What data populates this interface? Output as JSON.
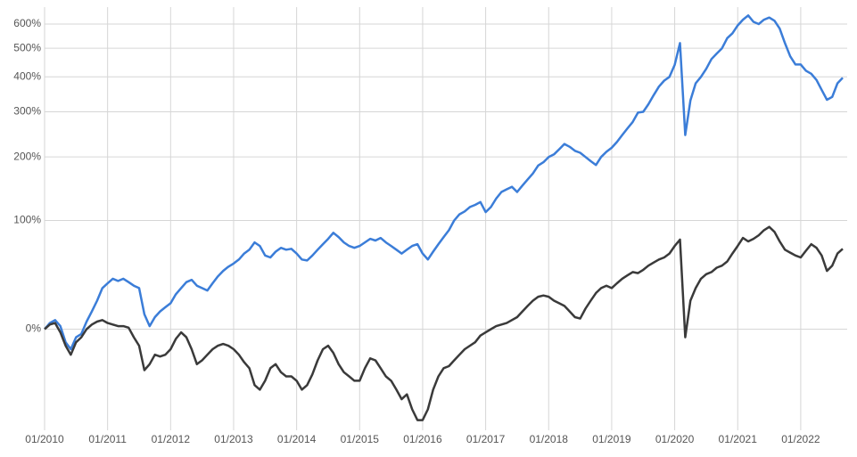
{
  "chart_data": {
    "type": "line",
    "log_scale": true,
    "grid": true,
    "x": [
      "01/2010",
      "02/2010",
      "03/2010",
      "04/2010",
      "05/2010",
      "06/2010",
      "07/2010",
      "08/2010",
      "09/2010",
      "10/2010",
      "11/2010",
      "12/2010",
      "01/2011",
      "02/2011",
      "03/2011",
      "04/2011",
      "05/2011",
      "06/2011",
      "07/2011",
      "08/2011",
      "09/2011",
      "10/2011",
      "11/2011",
      "12/2011",
      "01/2012",
      "02/2012",
      "03/2012",
      "04/2012",
      "05/2012",
      "06/2012",
      "07/2012",
      "08/2012",
      "09/2012",
      "10/2012",
      "11/2012",
      "12/2012",
      "01/2013",
      "02/2013",
      "03/2013",
      "04/2013",
      "05/2013",
      "06/2013",
      "07/2013",
      "08/2013",
      "09/2013",
      "10/2013",
      "11/2013",
      "12/2013",
      "01/2014",
      "02/2014",
      "03/2014",
      "04/2014",
      "05/2014",
      "06/2014",
      "07/2014",
      "08/2014",
      "09/2014",
      "10/2014",
      "11/2014",
      "12/2014",
      "01/2015",
      "02/2015",
      "03/2015",
      "04/2015",
      "05/2015",
      "06/2015",
      "07/2015",
      "08/2015",
      "09/2015",
      "10/2015",
      "11/2015",
      "12/2015",
      "01/2016",
      "02/2016",
      "03/2016",
      "04/2016",
      "05/2016",
      "06/2016",
      "07/2016",
      "08/2016",
      "09/2016",
      "10/2016",
      "11/2016",
      "12/2016",
      "01/2017",
      "02/2017",
      "03/2017",
      "04/2017",
      "05/2017",
      "06/2017",
      "07/2017",
      "08/2017",
      "09/2017",
      "10/2017",
      "11/2017",
      "12/2017",
      "01/2018",
      "02/2018",
      "03/2018",
      "04/2018",
      "05/2018",
      "06/2018",
      "07/2018",
      "08/2018",
      "09/2018",
      "10/2018",
      "11/2018",
      "12/2018",
      "01/2019",
      "02/2019",
      "03/2019",
      "04/2019",
      "05/2019",
      "06/2019",
      "07/2019",
      "08/2019",
      "09/2019",
      "10/2019",
      "11/2019",
      "12/2019",
      "01/2020",
      "02/2020",
      "03/2020",
      "04/2020",
      "05/2020",
      "06/2020",
      "07/2020",
      "08/2020",
      "09/2020",
      "10/2020",
      "11/2020",
      "12/2020",
      "01/2021",
      "02/2021",
      "03/2021",
      "04/2021",
      "05/2021",
      "06/2021",
      "07/2021",
      "08/2021",
      "09/2021",
      "10/2021",
      "11/2021",
      "12/2021",
      "01/2022",
      "02/2022",
      "03/2022",
      "04/2022",
      "05/2022",
      "06/2022",
      "07/2022",
      "08/2022",
      "09/2022"
    ],
    "series": [
      {
        "color": "#3b7dd8",
        "values": [
          0,
          4,
          6,
          2,
          -8,
          -12,
          -5,
          -3,
          5,
          12,
          20,
          30,
          34,
          38,
          36,
          38,
          35,
          32,
          30,
          10,
          2,
          8,
          12,
          15,
          18,
          25,
          30,
          35,
          37,
          32,
          30,
          28,
          34,
          40,
          45,
          49,
          52,
          56,
          62,
          66,
          74,
          70,
          60,
          58,
          64,
          68,
          66,
          67,
          62,
          56,
          55,
          60,
          66,
          72,
          78,
          85,
          80,
          74,
          70,
          68,
          70,
          74,
          78,
          76,
          79,
          74,
          70,
          66,
          62,
          66,
          70,
          72,
          62,
          56,
          64,
          72,
          80,
          88,
          100,
          108,
          112,
          118,
          121,
          125,
          111,
          118,
          130,
          140,
          144,
          148,
          140,
          150,
          160,
          170,
          184,
          190,
          200,
          205,
          215,
          226,
          220,
          212,
          208,
          200,
          192,
          185,
          200,
          210,
          218,
          230,
          245,
          260,
          275,
          298,
          300,
          320,
          345,
          370,
          388,
          400,
          440,
          520,
          245,
          330,
          380,
          400,
          426,
          460,
          480,
          500,
          540,
          560,
          594,
          620,
          640,
          610,
          600,
          620,
          630,
          615,
          580,
          520,
          470,
          441,
          441,
          420,
          410,
          390,
          360,
          332,
          340,
          380,
          397
        ]
      },
      {
        "color": "#3a3a3a",
        "values": [
          0,
          3,
          4,
          -2,
          -10,
          -15,
          -8,
          -5,
          0,
          3,
          5,
          6,
          4,
          3,
          2,
          2,
          1,
          -5,
          -10,
          -23,
          -20,
          -15,
          -16,
          -15,
          -12,
          -6,
          -2,
          -5,
          -12,
          -20,
          -18,
          -15,
          -12,
          -10,
          -9,
          -10,
          -12,
          -15,
          -19,
          -22,
          -30,
          -32,
          -28,
          -22,
          -20,
          -24,
          -26,
          -26,
          -28,
          -32,
          -30,
          -25,
          -18,
          -12,
          -10,
          -14,
          -20,
          -24,
          -26,
          -28,
          -28,
          -22,
          -17,
          -18,
          -22,
          -26,
          -28,
          -32,
          -36,
          -34,
          -40,
          -44,
          -44,
          -40,
          -32,
          -26,
          -22,
          -21,
          -18,
          -15,
          -12,
          -10,
          -8,
          -4,
          -2,
          0,
          2,
          3,
          4,
          6,
          8,
          12,
          16,
          20,
          23,
          24,
          23,
          20,
          18,
          16,
          12,
          8,
          7,
          14,
          20,
          26,
          30,
          32,
          30,
          34,
          38,
          41,
          44,
          43,
          46,
          50,
          53,
          56,
          58,
          62,
          70,
          77,
          -5,
          20,
          30,
          38,
          42,
          44,
          48,
          50,
          54,
          62,
          70,
          79,
          75,
          78,
          82,
          88,
          92,
          86,
          75,
          66,
          63,
          60,
          58,
          65,
          72,
          68,
          60,
          45,
          50,
          62,
          67
        ]
      }
    ],
    "xlim": [
      "01/2010",
      "09/2022"
    ],
    "xticks": [
      "01/2010",
      "01/2011",
      "01/2012",
      "01/2013",
      "01/2014",
      "01/2015",
      "01/2016",
      "01/2017",
      "01/2018",
      "01/2019",
      "01/2020",
      "01/2021",
      "01/2022"
    ],
    "ylim": [
      -46,
      680
    ],
    "yticks": [
      {
        "value": 0,
        "label": "0%"
      },
      {
        "value": 100,
        "label": "100%"
      },
      {
        "value": 200,
        "label": "200%"
      },
      {
        "value": 300,
        "label": "300%"
      },
      {
        "value": 400,
        "label": "400%"
      },
      {
        "value": 500,
        "label": "500%"
      },
      {
        "value": 600,
        "label": "600%"
      }
    ]
  }
}
